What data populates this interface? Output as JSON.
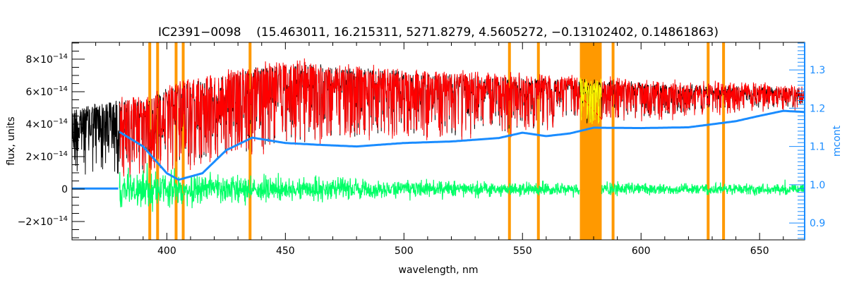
{
  "chart_data": {
    "type": "line",
    "title": "IC2391−0098    (15.463011, 16.215311, 5271.8279, 4.5605272, −0.13102402, 0.14861863)",
    "xlabel": "wavelength, nm",
    "ylabel": "flux, units",
    "y2label": "mcont",
    "xlim": [
      360,
      669
    ],
    "ylim": [
      -3.13e-14,
      9.04e-14
    ],
    "y2lim": [
      0.856,
      1.372
    ],
    "x_ticks": [
      400,
      450,
      500,
      550,
      600,
      650
    ],
    "x_tick_labels": [
      "400",
      "450",
      "500",
      "550",
      "600",
      "650"
    ],
    "y_ticks": [
      -2e-14,
      0,
      2e-14,
      4e-14,
      6e-14,
      8e-14
    ],
    "y_tick_labels": [
      {
        "mantissa": "−2×10",
        "exp": "−14"
      },
      {
        "mantissa": "0",
        "exp": ""
      },
      {
        "mantissa": "2×10",
        "exp": "−14"
      },
      {
        "mantissa": "4×10",
        "exp": "−14"
      },
      {
        "mantissa": "6×10",
        "exp": "−14"
      },
      {
        "mantissa": "8×10",
        "exp": "−14"
      }
    ],
    "y2_ticks": [
      0.9,
      1.0,
      1.1,
      1.2,
      1.3
    ],
    "y2_tick_labels": [
      "0.9",
      "1.0",
      "1.1",
      "1.2",
      "1.3"
    ],
    "colors": {
      "observed": "#000000",
      "model": "#ff0000",
      "masked_model": "#ffff00",
      "residual": "#00ff66",
      "mcont": "#1a8cff",
      "mask": "#ff9900"
    },
    "masked_lines_nm": [
      392.8,
      396.1,
      403.9,
      406.9,
      435.1,
      544.5,
      556.7,
      588.2,
      628.3,
      634.8
    ],
    "masked_band_nm": [
      574.2,
      583.4
    ],
    "observed_envelope": {
      "x": [
        360,
        370,
        379,
        380,
        390,
        400,
        410,
        420,
        430,
        440,
        450,
        460,
        470,
        480,
        500,
        520,
        540,
        560,
        580,
        600,
        620,
        640,
        660,
        669
      ],
      "upper": [
        5e-14,
        5.3e-14,
        5.5e-14,
        5.6e-14,
        5.5e-14,
        6.2e-14,
        6.8e-14,
        7e-14,
        7.3e-14,
        7.6e-14,
        7.8e-14,
        7.8e-14,
        7.6e-14,
        7.5e-14,
        7.3e-14,
        7.1e-14,
        7e-14,
        6.9e-14,
        6.8e-14,
        6.6e-14,
        6.5e-14,
        6.4e-14,
        6.3e-14,
        6.2e-14
      ],
      "lower": [
        1e-14,
        1e-14,
        1e-14,
        9e-15,
        1e-14,
        1.2e-14,
        1.6e-14,
        2e-14,
        2.2e-14,
        2.4e-14,
        2.8e-14,
        3e-14,
        3.2e-14,
        3.3e-14,
        3.4e-14,
        3.4e-14,
        3.6e-14,
        3.8e-14,
        4.2e-14,
        4.5e-14,
        4.8e-14,
        5e-14,
        5.2e-14,
        5.2e-14
      ]
    },
    "model_range_nm": [
      380,
      669
    ],
    "residual_amplitude": {
      "x": [
        380,
        420,
        460,
        500,
        560,
        620,
        669
      ],
      "sigma": [
        9e-15,
        7e-15,
        5e-15,
        4e-15,
        3e-15,
        2.5e-15,
        2.5e-15
      ]
    },
    "mcont": {
      "x": [
        360,
        379,
        380,
        390,
        400,
        405,
        415,
        425,
        436,
        450,
        465,
        480,
        500,
        520,
        540,
        550,
        560,
        570,
        580,
        600,
        620,
        640,
        650,
        660,
        669
      ],
      "y": [
        0.99,
        0.99,
        1.138,
        1.1,
        1.03,
        1.013,
        1.03,
        1.09,
        1.123,
        1.109,
        1.104,
        1.1,
        1.109,
        1.113,
        1.122,
        1.136,
        1.127,
        1.134,
        1.149,
        1.148,
        1.15,
        1.166,
        1.18,
        1.193,
        1.19
      ]
    }
  }
}
